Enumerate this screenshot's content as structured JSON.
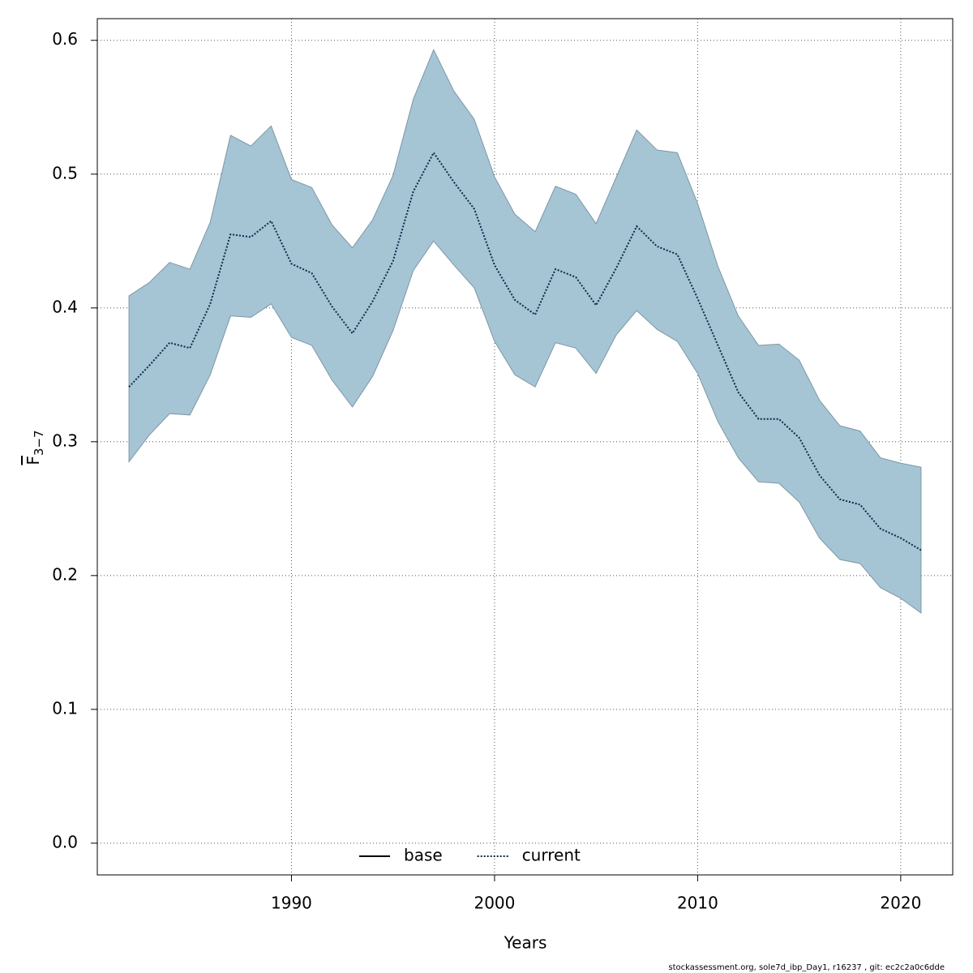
{
  "chart_data": {
    "type": "line",
    "xlabel": "Years",
    "ylabel": {
      "main": "F",
      "sub": "3−7"
    },
    "footer": "stockassessment.org, sole7d_ibp_Day1, r16237 , git: ec2c2a0c6dde",
    "x": [
      1982,
      1983,
      1984,
      1985,
      1986,
      1987,
      1988,
      1989,
      1990,
      1991,
      1992,
      1993,
      1994,
      1995,
      1996,
      1997,
      1998,
      1999,
      2000,
      2001,
      2002,
      2003,
      2004,
      2005,
      2006,
      2007,
      2008,
      2009,
      2010,
      2011,
      2012,
      2013,
      2014,
      2015,
      2016,
      2017,
      2018,
      2019,
      2020,
      2021
    ],
    "series": [
      {
        "name": "current",
        "color": "#0c2a4a",
        "style": "dotted",
        "values": [
          0.341,
          0.357,
          0.374,
          0.37,
          0.403,
          0.455,
          0.453,
          0.465,
          0.433,
          0.426,
          0.401,
          0.381,
          0.405,
          0.435,
          0.487,
          0.516,
          0.494,
          0.474,
          0.432,
          0.406,
          0.395,
          0.429,
          0.423,
          0.402,
          0.43,
          0.461,
          0.446,
          0.44,
          0.407,
          0.372,
          0.337,
          0.317,
          0.317,
          0.303,
          0.275,
          0.257,
          0.253,
          0.235,
          0.228,
          0.219
        ],
        "upper": [
          0.409,
          0.419,
          0.434,
          0.429,
          0.464,
          0.529,
          0.521,
          0.536,
          0.496,
          0.49,
          0.462,
          0.445,
          0.466,
          0.499,
          0.556,
          0.593,
          0.562,
          0.541,
          0.498,
          0.47,
          0.457,
          0.491,
          0.485,
          0.463,
          0.498,
          0.533,
          0.518,
          0.516,
          0.478,
          0.431,
          0.394,
          0.372,
          0.373,
          0.361,
          0.331,
          0.312,
          0.308,
          0.288,
          0.284,
          0.281
        ],
        "lower": [
          0.285,
          0.305,
          0.321,
          0.32,
          0.35,
          0.394,
          0.393,
          0.403,
          0.378,
          0.372,
          0.346,
          0.326,
          0.349,
          0.383,
          0.428,
          0.45,
          0.432,
          0.415,
          0.375,
          0.35,
          0.341,
          0.374,
          0.37,
          0.351,
          0.38,
          0.398,
          0.384,
          0.375,
          0.351,
          0.315,
          0.288,
          0.27,
          0.269,
          0.255,
          0.228,
          0.212,
          0.209,
          0.191,
          0.183,
          0.172
        ],
        "band_color": "#a5c4d4"
      }
    ],
    "legend": [
      {
        "name": "base",
        "color": "#000000",
        "style": "solid"
      },
      {
        "name": "current",
        "color": "#0c2a4a",
        "style": "dotted"
      }
    ],
    "legend_position": "bottom",
    "xlim": [
      1980.44,
      2022.56
    ],
    "xticks": [
      1990,
      2000,
      2010,
      2020
    ],
    "ylim": [
      -0.0237,
      0.6162
    ],
    "yticks": [
      {
        "value": 0,
        "label": "0.0"
      },
      0.1,
      0.2,
      0.3,
      0.4,
      0.5,
      0.6
    ],
    "grid": true
  }
}
